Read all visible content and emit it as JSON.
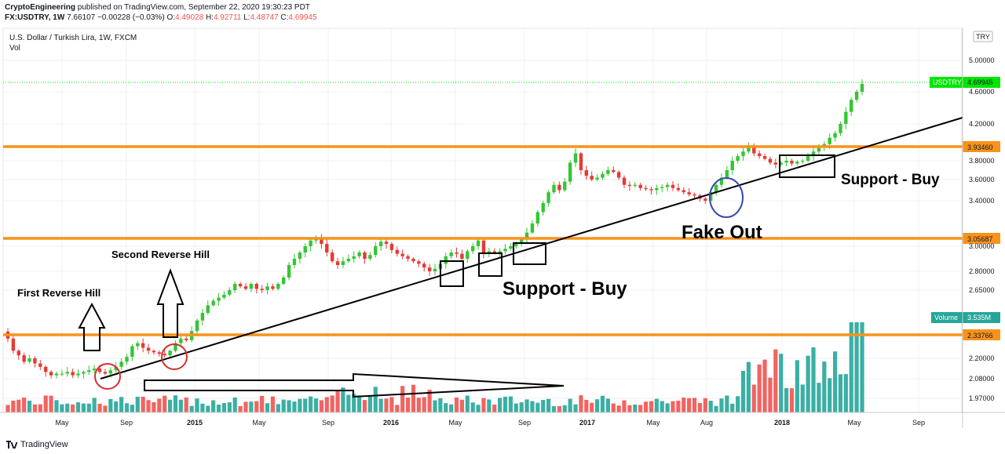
{
  "header": {
    "author": "CryptoEngineering",
    "published_text": "published on TradingView.com, September 22, 2020 19:30:23 PDT",
    "symbol_line_prefix": "FX:USDTRY, 1W",
    "last": "7.66107",
    "change": "−0.00228 (−0.03%)",
    "o_label": "O:",
    "o": "4.49028",
    "h_label": "H:",
    "h": "4.92711",
    "l_label": "L:",
    "l": "4.48747",
    "c_label": "C:",
    "c": "4.69945"
  },
  "legend": {
    "title": "U.S. Dollar / Turkish Lira, 1W, FXCM",
    "vol": "Vol"
  },
  "footer": {
    "brand": "TradingView"
  },
  "annotations": {
    "first_reverse_hill": "First Reverse Hill",
    "second_reverse_hill": "Second Reverse Hill",
    "support_buy_1": "Support - Buy",
    "support_buy_2": "Support - Buy",
    "fake_out": "Fake Out"
  },
  "colors": {
    "up": "#26a69a",
    "down": "#ef5350",
    "green_candle": "#35c535",
    "red_candle": "#e53935",
    "orange": "#f7931a",
    "price_tag": "#00e600",
    "volume_tag": "#26a69a"
  },
  "chart_data": {
    "type": "candlestick",
    "symbol": "USDTRY",
    "interval": "1W",
    "x_ticks": [
      "May",
      "Sep",
      "2015",
      "May",
      "Sep",
      "2016",
      "May",
      "Sep",
      "2017",
      "May",
      "Aug",
      "2018",
      "May",
      "Sep"
    ],
    "y_ticks": [
      5.0,
      4.6,
      4.2,
      3.8,
      3.6,
      3.4,
      3.0,
      2.8,
      2.65,
      2.2,
      2.08,
      1.97
    ],
    "y_scale": "log",
    "currency_button": "TRY",
    "last_price_label": "USDTRY",
    "last_price": "4.69945",
    "horizontal_levels": [
      "3.93460",
      "3.05687",
      "2.33766"
    ],
    "volume_label": "Volume",
    "volume_last": "3.535M",
    "trendline": {
      "from": {
        "date": "2014-08",
        "price": 2.15
      },
      "to": {
        "date": "2018-09",
        "price": 4.25
      }
    },
    "weekly_closes_estimated": [
      2.33,
      2.25,
      2.22,
      2.18,
      2.2,
      2.17,
      2.15,
      2.12,
      2.1,
      2.11,
      2.11,
      2.12,
      2.1,
      2.11,
      2.12,
      2.13,
      2.14,
      2.12,
      2.11,
      2.13,
      2.15,
      2.18,
      2.21,
      2.28,
      2.3,
      2.27,
      2.25,
      2.24,
      2.23,
      2.22,
      2.25,
      2.3,
      2.33,
      2.32,
      2.38,
      2.45,
      2.5,
      2.55,
      2.58,
      2.6,
      2.62,
      2.65,
      2.7,
      2.68,
      2.66,
      2.7,
      2.66,
      2.65,
      2.68,
      2.66,
      2.7,
      2.75,
      2.85,
      2.9,
      2.95,
      3.0,
      3.05,
      3.07,
      3.02,
      2.95,
      2.88,
      2.85,
      2.88,
      2.9,
      2.92,
      2.95,
      2.9,
      2.93,
      3.0,
      3.04,
      3.02,
      2.97,
      2.94,
      2.92,
      2.9,
      2.88,
      2.86,
      2.83,
      2.8,
      2.82,
      2.86,
      2.92,
      2.95,
      2.94,
      2.9,
      2.96,
      3.0,
      3.05,
      2.94,
      2.96,
      2.95,
      2.96,
      2.98,
      3.0,
      3.02,
      3.06,
      3.12,
      3.2,
      3.3,
      3.38,
      3.48,
      3.55,
      3.5,
      3.58,
      3.78,
      3.88,
      3.7,
      3.64,
      3.6,
      3.62,
      3.66,
      3.7,
      3.68,
      3.62,
      3.55,
      3.54,
      3.55,
      3.52,
      3.51,
      3.5,
      3.52,
      3.53,
      3.55,
      3.52,
      3.5,
      3.48,
      3.46,
      3.45,
      3.42,
      3.4,
      3.48,
      3.55,
      3.62,
      3.7,
      3.8,
      3.85,
      3.9,
      3.95,
      3.88,
      3.85,
      3.82,
      3.78,
      3.76,
      3.78,
      3.8,
      3.77,
      3.79,
      3.8,
      3.85,
      3.9,
      3.94,
      3.98,
      4.05,
      4.1,
      4.2,
      4.35,
      4.5,
      4.6,
      4.7
    ]
  }
}
